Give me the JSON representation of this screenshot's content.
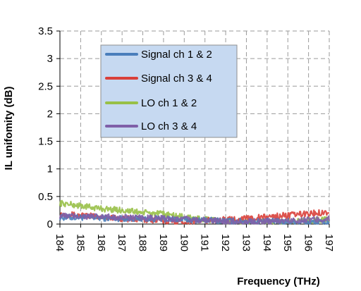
{
  "chart_data": {
    "type": "line",
    "xlabel": "Frequency (THz)",
    "ylabel": "IL unifomity (dB)",
    "x_ticks": [
      "184",
      "185",
      "186",
      "187",
      "188",
      "189",
      "190",
      "191",
      "192",
      "193",
      "194",
      "195",
      "196",
      "197"
    ],
    "y_ticks": [
      "0",
      "0.5",
      "1",
      "1.5",
      "2",
      "2.5",
      "3",
      "3.5"
    ],
    "xlim": [
      184,
      197
    ],
    "ylim": [
      0,
      3.5
    ],
    "grid": "dashed",
    "legend_position": "upper-center",
    "series": [
      {
        "name": "Signal ch 1 & 2",
        "color": "#4a7ebb",
        "x": [
          184,
          185,
          186,
          187,
          188,
          189,
          190,
          191,
          192,
          193,
          194,
          195,
          196,
          197
        ],
        "y": [
          0.12,
          0.12,
          0.11,
          0.1,
          0.1,
          0.09,
          0.08,
          0.07,
          0.06,
          0.05,
          0.05,
          0.04,
          0.03,
          0.03
        ]
      },
      {
        "name": "Signal ch 3 & 4",
        "color": "#d9403a",
        "x": [
          184,
          185,
          186,
          187,
          188,
          189,
          190,
          191,
          192,
          193,
          194,
          195,
          196,
          197
        ],
        "y": [
          0.18,
          0.16,
          0.13,
          0.1,
          0.08,
          0.06,
          0.05,
          0.06,
          0.08,
          0.1,
          0.13,
          0.16,
          0.19,
          0.22
        ]
      },
      {
        "name": "LO ch 1 & 2",
        "color": "#98c047",
        "x": [
          184,
          185,
          186,
          187,
          188,
          189,
          190,
          191,
          192,
          193,
          194,
          195,
          196,
          197
        ],
        "y": [
          0.38,
          0.33,
          0.28,
          0.25,
          0.21,
          0.18,
          0.13,
          0.08,
          0.05,
          0.04,
          0.04,
          0.05,
          0.07,
          0.08
        ]
      },
      {
        "name": "LO ch 3 & 4",
        "color": "#7f5fa8",
        "x": [
          184,
          185,
          186,
          187,
          188,
          189,
          190,
          191,
          192,
          193,
          194,
          195,
          196,
          197
        ],
        "y": [
          0.15,
          0.14,
          0.13,
          0.12,
          0.11,
          0.1,
          0.09,
          0.07,
          0.05,
          0.04,
          0.05,
          0.06,
          0.08,
          0.09
        ]
      }
    ]
  }
}
